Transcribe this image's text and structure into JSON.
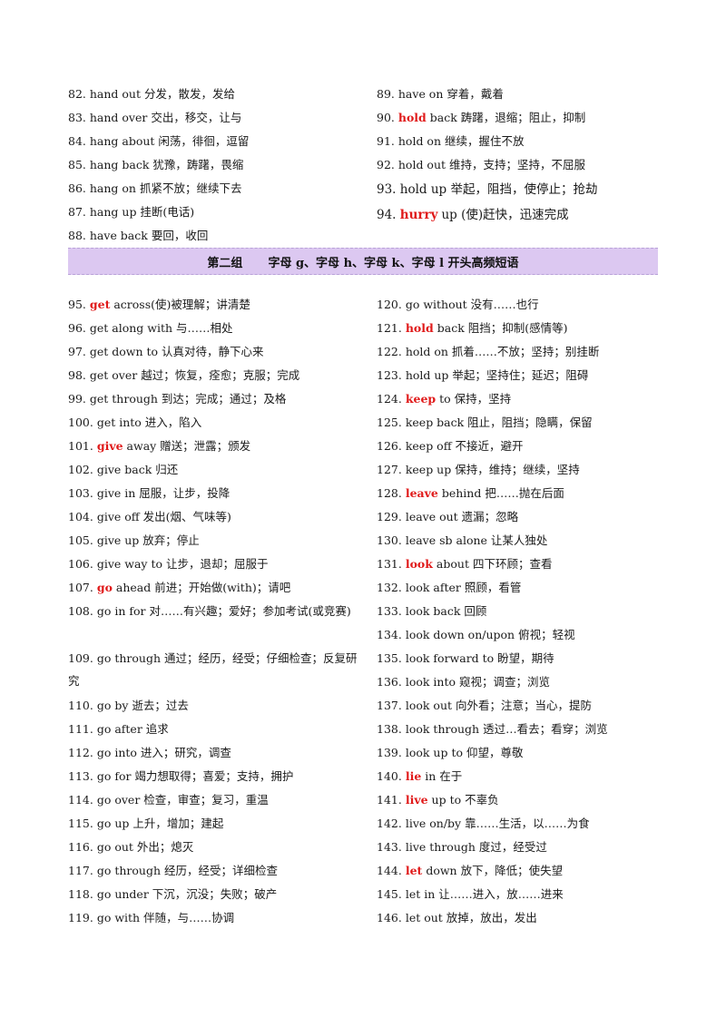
{
  "section_header": {
    "group": "第二组",
    "title": "字母 g、字母 h、字母 k、字母 l 开头高频短语"
  },
  "top_left": [
    {
      "num": "82.",
      "text": "hand out 分发，散发，发给"
    },
    {
      "num": "83.",
      "text": "hand over 交出，移交，让与"
    },
    {
      "num": "84.",
      "text": "hang about 闲荡，徘徊，逗留"
    },
    {
      "num": "85.",
      "text": "hang back 犹豫，踌躇，畏缩"
    },
    {
      "num": "86.",
      "text": "hang on 抓紧不放；继续下去"
    },
    {
      "num": "87.",
      "text": "hang up 挂断(电话)"
    },
    {
      "num": "88.",
      "text": "have back 要回，收回"
    }
  ],
  "top_right": [
    {
      "num": "89.",
      "keyword": "",
      "text": "have on 穿着，戴着"
    },
    {
      "num": "90.",
      "keyword": "hold",
      "text": "back 踌躇，退缩；阻止，抑制"
    },
    {
      "num": "91.",
      "keyword": "",
      "text": "hold on 继续，握住不放"
    },
    {
      "num": "92.",
      "keyword": "",
      "text": "hold out 维持，支持；坚持，不屈服"
    },
    {
      "num": "93.",
      "keyword": "",
      "text": "hold up 举起，阻挡，使停止；抢劫"
    },
    {
      "num": "94.",
      "keyword": "hurry",
      "text": "up (使)赶快，迅速完成"
    }
  ],
  "left_list": [
    {
      "num": "95.",
      "keyword": "get",
      "text": "across(使)被理解；讲清楚"
    },
    {
      "num": "96.",
      "keyword": "",
      "text": "get along with 与……相处"
    },
    {
      "num": "97.",
      "keyword": "",
      "text": "get down to 认真对待，静下心来"
    },
    {
      "num": "98.",
      "keyword": "",
      "text": "get over 越过；恢复，痊愈；克服；完成"
    },
    {
      "num": "99.",
      "keyword": "",
      "text": "get through 到达；完成；通过；及格"
    },
    {
      "num": "100.",
      "keyword": "",
      "text": "get into 进入，陷入"
    },
    {
      "num": "101.",
      "keyword": "give",
      "text": "away 赠送；泄露；颁发"
    },
    {
      "num": "102.",
      "keyword": "",
      "text": "give back 归还"
    },
    {
      "num": "103.",
      "keyword": "",
      "text": "give in 屈服，让步，投降"
    },
    {
      "num": "104.",
      "keyword": "",
      "text": "give off 发出(烟、气味等)"
    },
    {
      "num": "105.",
      "keyword": "",
      "text": "give up 放弃；停止"
    },
    {
      "num": "106.",
      "keyword": "",
      "text": "give way to 让步，退却；屈服于"
    },
    {
      "num": "107.",
      "keyword": "go",
      "text": "ahead 前进；开始做(with)；请吧"
    },
    {
      "num": "108.",
      "keyword": "",
      "text": "go in for 对……有兴趣；爱好；参加考试(或竞赛)"
    },
    {
      "num": "109.",
      "keyword": "",
      "text": "go through 通过；经历，经受；仔细检查；反复研究"
    },
    {
      "num": "110.",
      "keyword": "",
      "text": "go by 逝去；过去"
    },
    {
      "num": "111.",
      "keyword": "",
      "text": "go after 追求"
    },
    {
      "num": "112.",
      "keyword": "",
      "text": "go into 进入；研究，调查"
    },
    {
      "num": "113.",
      "keyword": "",
      "text": "go for 竭力想取得；喜爱；支持，拥护"
    },
    {
      "num": "114.",
      "keyword": "",
      "text": "go over 检查，审查；复习，重温"
    },
    {
      "num": "115.",
      "keyword": "",
      "text": "go up 上升，增加；建起"
    },
    {
      "num": "116.",
      "keyword": "",
      "text": "go out 外出；熄灭"
    },
    {
      "num": "117.",
      "keyword": "",
      "text": "go through 经历，经受；详细检查"
    },
    {
      "num": "118.",
      "keyword": "",
      "text": "go under 下沉，沉没；失败；破产"
    },
    {
      "num": "119.",
      "keyword": "",
      "text": "go with 伴随，与……协调"
    }
  ],
  "right_list": [
    {
      "num": "120.",
      "keyword": "",
      "text": "go without 没有……也行"
    },
    {
      "num": "121.",
      "keyword": "hold",
      "text": "back 阻挡；抑制(感情等)"
    },
    {
      "num": "122.",
      "keyword": "",
      "text": "hold on 抓着……不放；坚持；别挂断"
    },
    {
      "num": "123.",
      "keyword": "",
      "text": "hold up 举起；坚持住；延迟；阻碍"
    },
    {
      "num": "124.",
      "keyword": "keep",
      "text": "to 保持，坚持"
    },
    {
      "num": "125.",
      "keyword": "",
      "text": "keep back 阻止，阻挡；隐瞒，保留"
    },
    {
      "num": "126.",
      "keyword": "",
      "text": "keep off 不接近，避开"
    },
    {
      "num": "127.",
      "keyword": "",
      "text": "keep up 保持，维持；继续，坚持"
    },
    {
      "num": "128.",
      "keyword": "leave",
      "text": "behind 把……抛在后面"
    },
    {
      "num": "129.",
      "keyword": "",
      "text": "leave out 遗漏；忽略"
    },
    {
      "num": "130.",
      "keyword": "",
      "text": "leave sb alone 让某人独处"
    },
    {
      "num": "131.",
      "keyword": "look",
      "text": "about 四下环顾；查看"
    },
    {
      "num": "132.",
      "keyword": "",
      "text": "look after 照顾，看管"
    },
    {
      "num": "133.",
      "keyword": "",
      "text": "look back 回顾"
    },
    {
      "num": "134.",
      "keyword": "",
      "text": "look down on/upon 俯视；轻视"
    },
    {
      "num": "135.",
      "keyword": "",
      "text": "look forward to 盼望，期待"
    },
    {
      "num": "136.",
      "keyword": "",
      "text": "look into 窥视；调查；浏览"
    },
    {
      "num": "137.",
      "keyword": "",
      "text": "look out 向外看；注意；当心，提防"
    },
    {
      "num": "138.",
      "keyword": "",
      "text": "look through 透过…看去；看穿；浏览"
    },
    {
      "num": "139.",
      "keyword": "",
      "text": "look up to 仰望，尊敬"
    },
    {
      "num": "140.",
      "keyword": "lie",
      "text": "in 在于"
    },
    {
      "num": "141.",
      "keyword": "live",
      "text": "up to 不辜负"
    },
    {
      "num": "142.",
      "keyword": "",
      "text": "live on/by 靠……生活，以……为食"
    },
    {
      "num": "143.",
      "keyword": "",
      "text": "live through 度过，经受过"
    },
    {
      "num": "144.",
      "keyword": "let",
      "text": "down 放下，降低；使失望"
    },
    {
      "num": "145.",
      "keyword": "",
      "text": "let in 让……进入，放……进来"
    },
    {
      "num": "146.",
      "keyword": "",
      "text": "let out 放掉，放出，发出"
    }
  ]
}
